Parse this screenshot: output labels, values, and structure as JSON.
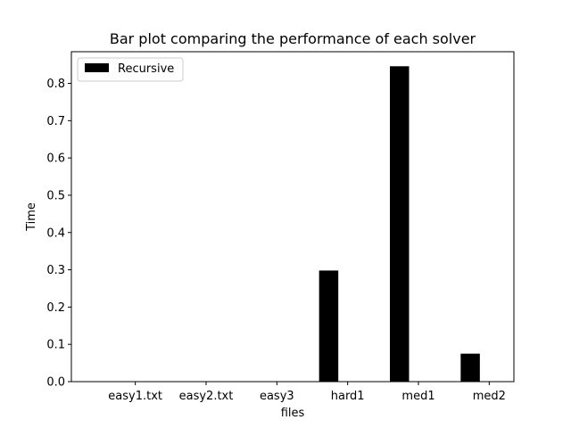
{
  "chart_data": {
    "type": "bar",
    "title": "Bar plot comparing the performance of each solver",
    "xlabel": "files",
    "ylabel": "Time",
    "categories": [
      "easy1.txt",
      "easy2.txt",
      "easy3",
      "hard1",
      "med1",
      "med2"
    ],
    "series": [
      {
        "name": "Recursive",
        "color": "#000000",
        "values": [
          0.0,
          0.0,
          0.0,
          0.298,
          0.846,
          0.075
        ]
      }
    ],
    "ylim": [
      0,
      0.885
    ],
    "yticks": [
      0.0,
      0.1,
      0.2,
      0.3,
      0.4,
      0.5,
      0.6,
      0.7,
      0.8
    ],
    "ytick_labels": [
      "0.0",
      "0.1",
      "0.2",
      "0.3",
      "0.4",
      "0.5",
      "0.6",
      "0.7",
      "0.8"
    ],
    "grid": false,
    "legend_position": "top-left"
  }
}
